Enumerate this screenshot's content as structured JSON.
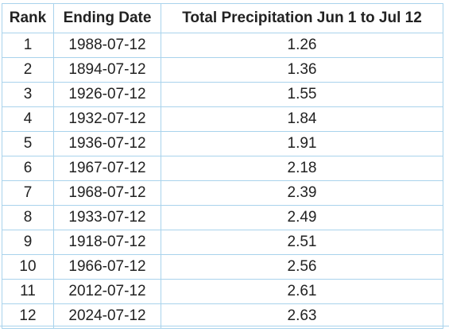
{
  "table": {
    "headers": {
      "rank": "Rank",
      "date": "Ending Date",
      "precip": "Total Precipitation Jun 1 to Jul 12"
    },
    "rows": [
      {
        "rank": "1",
        "date": "1988-07-12",
        "precip": "1.26"
      },
      {
        "rank": "2",
        "date": "1894-07-12",
        "precip": "1.36"
      },
      {
        "rank": "3",
        "date": "1926-07-12",
        "precip": "1.55"
      },
      {
        "rank": "4",
        "date": "1932-07-12",
        "precip": "1.84"
      },
      {
        "rank": "5",
        "date": "1936-07-12",
        "precip": "1.91"
      },
      {
        "rank": "6",
        "date": "1967-07-12",
        "precip": "2.18"
      },
      {
        "rank": "7",
        "date": "1968-07-12",
        "precip": "2.39"
      },
      {
        "rank": "8",
        "date": "1933-07-12",
        "precip": "2.49"
      },
      {
        "rank": "9",
        "date": "1918-07-12",
        "precip": "2.51"
      },
      {
        "rank": "10",
        "date": "1966-07-12",
        "precip": "2.56"
      },
      {
        "rank": "11",
        "date": "2012-07-12",
        "precip": "2.61"
      },
      {
        "rank": "12",
        "date": "2024-07-12",
        "precip": "2.63"
      }
    ]
  },
  "colors": {
    "border": "#a9d3ec",
    "text": "#222222"
  }
}
